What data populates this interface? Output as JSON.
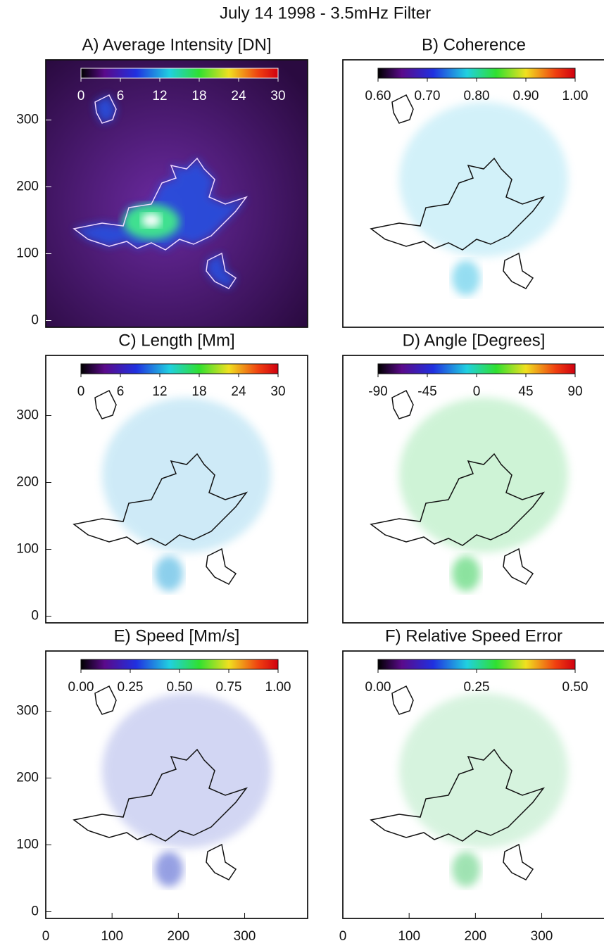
{
  "title": "July 14 1998 - 3.5mHz Filter",
  "chart_data": [
    {
      "type": "image",
      "title": "A) Average Intensity [DN]",
      "xlim": [
        0,
        395
      ],
      "ylim": [
        -10,
        390
      ],
      "yticks": [
        0,
        100,
        200,
        300
      ],
      "colorbar": {
        "lim": [
          0,
          30
        ],
        "ticks": [
          0,
          6,
          12,
          18,
          24,
          30
        ]
      }
    },
    {
      "type": "image",
      "title": "B) Coherence",
      "xlim": [
        0,
        395
      ],
      "ylim": [
        -10,
        390
      ],
      "colorbar": {
        "lim": [
          0.6,
          1
        ],
        "ticks": [
          {
            "value": 0.6,
            "label": "0.60"
          },
          {
            "value": 0.7,
            "label": "0.70"
          },
          {
            "value": 0.8,
            "label": "0.80"
          },
          {
            "value": 0.9,
            "label": "0.90"
          },
          {
            "value": 1,
            "label": "1.00"
          }
        ]
      }
    },
    {
      "type": "image",
      "title": "C) Length [Mm]",
      "xlim": [
        0,
        395
      ],
      "ylim": [
        -10,
        390
      ],
      "yticks": [
        0,
        100,
        200,
        300
      ],
      "colorbar": {
        "lim": [
          0,
          30
        ],
        "ticks": [
          0,
          6,
          12,
          18,
          24,
          30
        ]
      }
    },
    {
      "type": "image",
      "title": "D) Angle [Degrees]",
      "xlim": [
        0,
        395
      ],
      "ylim": [
        -10,
        390
      ],
      "colorbar": {
        "lim": [
          -90,
          90
        ],
        "ticks": [
          -90,
          -45,
          0,
          45,
          90
        ]
      }
    },
    {
      "type": "image",
      "title": "E) Speed [Mm/s]",
      "xlim": [
        0,
        395
      ],
      "ylim": [
        -10,
        390
      ],
      "yticks": [
        0,
        100,
        200,
        300
      ],
      "xticks": [
        0,
        100,
        200,
        300
      ],
      "colorbar": {
        "lim": [
          0,
          1
        ],
        "ticks": [
          {
            "value": 0,
            "label": "0.00"
          },
          {
            "value": 0.25,
            "label": "0.25"
          },
          {
            "value": 0.5,
            "label": "0.50"
          },
          {
            "value": 0.75,
            "label": "0.75"
          },
          {
            "value": 1,
            "label": "1.00"
          }
        ]
      }
    },
    {
      "type": "image",
      "title": "F) Relative Speed Error",
      "xlim": [
        0,
        395
      ],
      "ylim": [
        -10,
        390
      ],
      "xticks": [
        0,
        100,
        200,
        300
      ],
      "colorbar": {
        "lim": [
          0,
          0.5
        ],
        "ticks": [
          {
            "value": 0,
            "label": "0.00"
          },
          {
            "value": 0.25,
            "label": "0.25"
          },
          {
            "value": 0.5,
            "label": "0.50"
          }
        ]
      }
    }
  ]
}
